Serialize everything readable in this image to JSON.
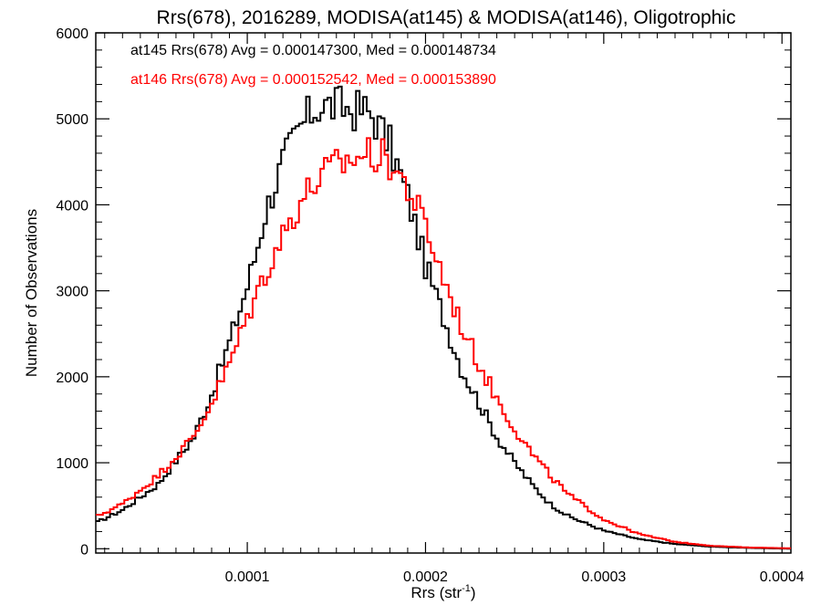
{
  "chart_data": {
    "type": "line",
    "title": "Rrs(678), 2016289, MODISA(at145) & MODISA(at146), Oligotrophic",
    "xlabel": "Rrs (str",
    "xlabel_sup": "-1",
    "xlabel_end": ")",
    "ylabel": "Number of Observations",
    "xlim": [
      1.5e-05,
      0.000405
    ],
    "ylim": [
      -50,
      6000
    ],
    "x_ticks": [
      0.0001,
      0.0002,
      0.0003,
      0.0004
    ],
    "x_tick_labels": [
      "0.0001",
      "0.0002",
      "0.0003",
      "0.0004"
    ],
    "y_ticks": [
      0,
      1000,
      2000,
      3000,
      4000,
      5000,
      6000
    ],
    "y_tick_labels": [
      "0",
      "1000",
      "2000",
      "3000",
      "4000",
      "5000",
      "6000"
    ],
    "grid": false,
    "legend_position": "top-left",
    "series": [
      {
        "name": "at145",
        "legend": "at145 Rrs(678) Avg = 0.000147300, Med = 0.000148734",
        "color": "#000000",
        "x": [
          1.5e-05,
          3e-05,
          5e-05,
          7e-05,
          8e-05,
          9e-05,
          0.0001,
          0.000105,
          0.00011,
          0.00012,
          0.00013,
          0.000135,
          0.00014,
          0.00015,
          0.00016,
          0.000165,
          0.00017,
          0.00018,
          0.00019,
          0.000195,
          0.0002,
          0.00021,
          0.00022,
          0.00023,
          0.00024,
          0.00025,
          0.00026,
          0.00027,
          0.00028,
          0.0003,
          0.00032,
          0.00034,
          0.00036,
          0.00038,
          0.000405
        ],
        "y": [
          300,
          450,
          750,
          1300,
          1800,
          2400,
          3050,
          3450,
          3900,
          4500,
          4900,
          5050,
          5150,
          5150,
          5100,
          5100,
          5050,
          4700,
          4100,
          3700,
          3300,
          2700,
          2100,
          1700,
          1300,
          1000,
          740,
          520,
          380,
          210,
          110,
          55,
          25,
          10,
          0
        ]
      },
      {
        "name": "at146",
        "legend": "at146 Rrs(678) Avg = 0.000152542, Med = 0.000153890",
        "color": "#ff0000",
        "x": [
          1.5e-05,
          3e-05,
          5e-05,
          7e-05,
          8e-05,
          9e-05,
          0.0001,
          0.00011,
          0.00012,
          0.00013,
          0.00014,
          0.00015,
          0.00016,
          0.00017,
          0.00018,
          0.00019,
          0.0002,
          0.00021,
          0.00022,
          0.00023,
          0.00024,
          0.00025,
          0.00026,
          0.00027,
          0.00028,
          0.0003,
          0.00032,
          0.00034,
          0.00036,
          0.00038,
          0.000405
        ],
        "y": [
          370,
          520,
          850,
          1300,
          1700,
          2150,
          2700,
          3200,
          3650,
          4050,
          4300,
          4450,
          4550,
          4600,
          4500,
          4200,
          3750,
          3150,
          2600,
          2150,
          1750,
          1400,
          1100,
          850,
          630,
          340,
          170,
          80,
          35,
          15,
          5
        ]
      }
    ]
  }
}
